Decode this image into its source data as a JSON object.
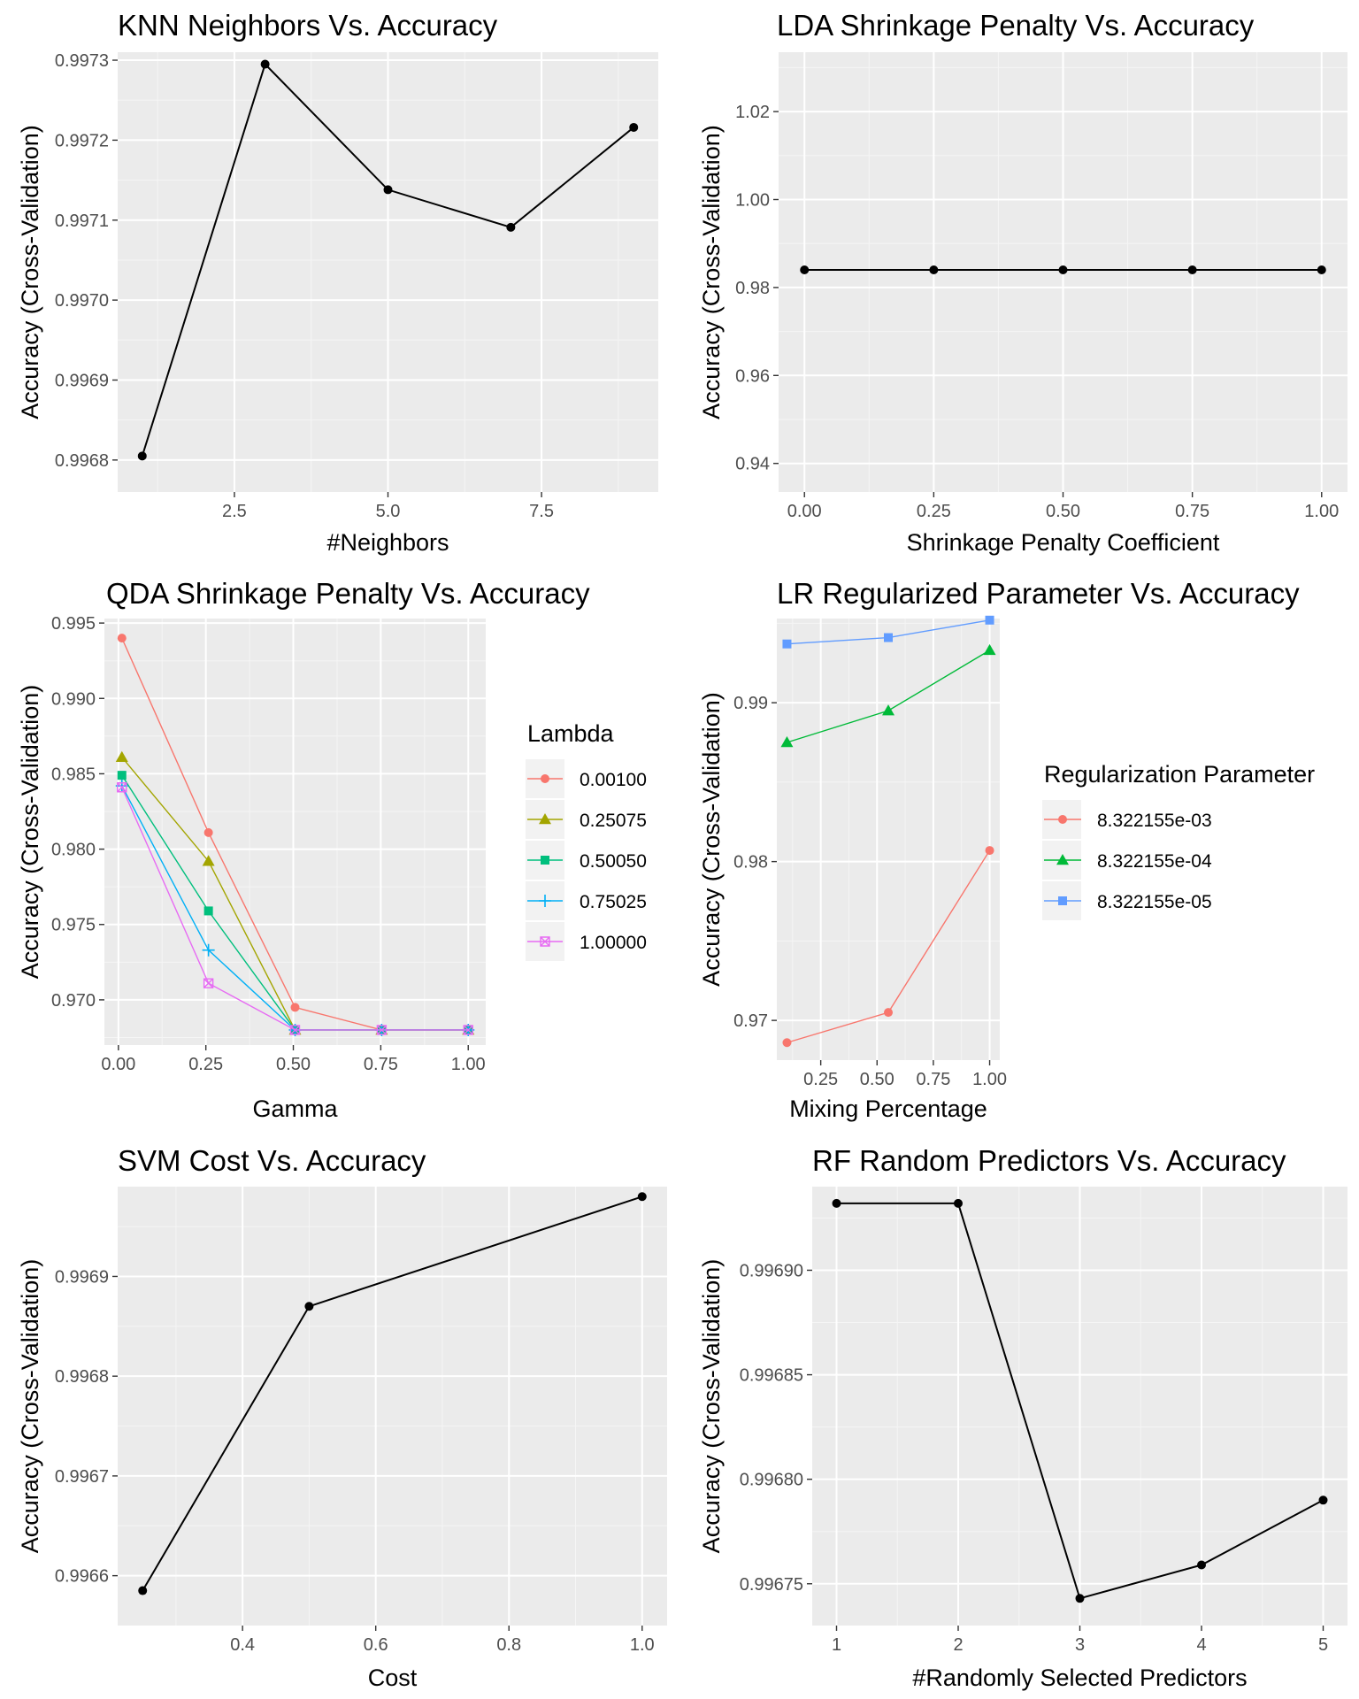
{
  "chart_data": [
    {
      "type": "line",
      "title": "KNN Neighbors Vs. Accuracy",
      "xlabel": "#Neighbors",
      "ylabel": "Accuracy (Cross-Validation)",
      "xlim": [
        0.6,
        9.4
      ],
      "ylim": [
        0.99676,
        0.99731
      ],
      "xticks": [
        2.5,
        5.0,
        7.5
      ],
      "xtick_labels": [
        "2.5",
        "5.0",
        "7.5"
      ],
      "yticks": [
        0.9968,
        0.9969,
        0.997,
        0.9971,
        0.9972,
        0.9973
      ],
      "ytick_labels": [
        "0.9968",
        "0.9969",
        "0.9970",
        "0.9971",
        "0.9972",
        "0.9973"
      ],
      "grid": true,
      "series": [
        {
          "color": "#000000",
          "marker": "circle",
          "x": [
            1,
            3,
            5,
            7,
            9
          ],
          "y": [
            0.996805,
            0.997295,
            0.997138,
            0.997091,
            0.997216
          ]
        }
      ]
    },
    {
      "type": "line",
      "title": "LDA Shrinkage Penalty Vs. Accuracy",
      "xlabel": "Shrinkage Penalty Coefficient",
      "ylabel": "Accuracy (Cross-Validation)",
      "xlim": [
        -0.05,
        1.05
      ],
      "ylim": [
        0.9335,
        1.0335
      ],
      "xticks": [
        0,
        0.25,
        0.5,
        0.75,
        1
      ],
      "xtick_labels": [
        "0.00",
        "0.25",
        "0.50",
        "0.75",
        "1.00"
      ],
      "yticks": [
        0.94,
        0.96,
        0.98,
        1.0,
        1.02
      ],
      "ytick_labels": [
        "0.94",
        "0.96",
        "0.98",
        "1.00",
        "1.02"
      ],
      "grid": true,
      "series": [
        {
          "color": "#000000",
          "marker": "circle",
          "x": [
            0,
            0.25,
            0.5,
            0.75,
            1
          ],
          "y": [
            0.984,
            0.984,
            0.984,
            0.984,
            0.984
          ]
        }
      ]
    },
    {
      "type": "line",
      "title": "QDA Shrinkage Penalty Vs. Accuracy",
      "xlabel": "Gamma",
      "ylabel": "Accuracy (Cross-Validation)",
      "xlim": [
        -0.04,
        1.05
      ],
      "ylim": [
        0.967,
        0.9953
      ],
      "xticks": [
        0,
        0.25,
        0.5,
        0.75,
        1
      ],
      "xtick_labels": [
        "0.00",
        "0.25",
        "0.50",
        "0.75",
        "1.00"
      ],
      "yticks": [
        0.97,
        0.975,
        0.98,
        0.985,
        0.99,
        0.995
      ],
      "ytick_labels": [
        "0.970",
        "0.975",
        "0.980",
        "0.985",
        "0.990",
        "0.995"
      ],
      "grid": true,
      "legend": {
        "title": "Lambda",
        "placement": "right"
      },
      "series": [
        {
          "name": "0.00100",
          "color": "#F8766D",
          "marker": "circle",
          "x": [
            0.01,
            0.2575,
            0.505,
            0.7525,
            1
          ],
          "y": [
            0.994,
            0.9811,
            0.9695,
            0.968,
            0.968
          ]
        },
        {
          "name": "0.25075",
          "color": "#A3A500",
          "marker": "triangle",
          "x": [
            0.01,
            0.2575,
            0.505,
            0.7525,
            1
          ],
          "y": [
            0.9861,
            0.9792,
            0.968,
            0.968,
            0.968
          ]
        },
        {
          "name": "0.50050",
          "color": "#00BF7D",
          "marker": "square",
          "x": [
            0.01,
            0.2575,
            0.505,
            0.7525,
            1
          ],
          "y": [
            0.9849,
            0.9759,
            0.968,
            0.968,
            0.968
          ]
        },
        {
          "name": "0.75025",
          "color": "#00B0F6",
          "marker": "plus",
          "x": [
            0.01,
            0.2575,
            0.505,
            0.7525,
            1
          ],
          "y": [
            0.9842,
            0.9733,
            0.968,
            0.968,
            0.968
          ]
        },
        {
          "name": "1.00000",
          "color": "#E76BF3",
          "marker": "boxcross",
          "x": [
            0.01,
            0.2575,
            0.505,
            0.7525,
            1
          ],
          "y": [
            0.9841,
            0.9711,
            0.968,
            0.968,
            0.968
          ]
        }
      ]
    },
    {
      "type": "line",
      "title": "LR Regularized Parameter Vs. Accuracy",
      "xlabel": "Mixing Percentage",
      "ylabel": "Accuracy (Cross-Validation)",
      "xlim": [
        0.055,
        1.045
      ],
      "ylim": [
        0.9675,
        0.9953
      ],
      "xticks": [
        0.25,
        0.5,
        0.75,
        1
      ],
      "xtick_labels": [
        "0.25",
        "0.50",
        "0.75",
        "1.00"
      ],
      "yticks": [
        0.97,
        0.98,
        0.99
      ],
      "ytick_labels": [
        "0.97",
        "0.98",
        "0.99"
      ],
      "grid": true,
      "legend": {
        "title": "Regularization Parameter",
        "placement": "right"
      },
      "series": [
        {
          "name": "8.322155e-03",
          "color": "#F8766D",
          "marker": "circle",
          "x": [
            0.1,
            0.55,
            1
          ],
          "y": [
            0.9686,
            0.9705,
            0.9807
          ]
        },
        {
          "name": "8.322155e-04",
          "color": "#00BA38",
          "marker": "triangle",
          "x": [
            0.1,
            0.55,
            1
          ],
          "y": [
            0.9875,
            0.9895,
            0.9933
          ]
        },
        {
          "name": "8.322155e-05",
          "color": "#619CFF",
          "marker": "square",
          "x": [
            0.1,
            0.55,
            1
          ],
          "y": [
            0.9937,
            0.9941,
            0.9952
          ]
        }
      ]
    },
    {
      "type": "line",
      "title": "SVM Cost Vs. Accuracy",
      "xlabel": "Cost",
      "ylabel": "Accuracy (Cross-Validation)",
      "xlim": [
        0.2125,
        1.0375
      ],
      "ylim": [
        0.99655,
        0.99699
      ],
      "xticks": [
        0.4,
        0.6,
        0.8,
        1.0
      ],
      "xtick_labels": [
        "0.4",
        "0.6",
        "0.8",
        "1.0"
      ],
      "yticks": [
        0.9966,
        0.9967,
        0.9968,
        0.9969
      ],
      "ytick_labels": [
        "0.9966",
        "0.9967",
        "0.9968",
        "0.9969"
      ],
      "grid": true,
      "series": [
        {
          "color": "#000000",
          "marker": "circle",
          "x": [
            0.25,
            0.5,
            1
          ],
          "y": [
            0.996585,
            0.99687,
            0.99698
          ]
        }
      ]
    },
    {
      "type": "line",
      "title": "RF Random Predictors Vs. Accuracy",
      "xlabel": "#Randomly Selected Predictors",
      "ylabel": "Accuracy (Cross-Validation)",
      "xlim": [
        0.8,
        5.2
      ],
      "ylim": [
        0.99673,
        0.99694
      ],
      "xticks": [
        1,
        2,
        3,
        4,
        5
      ],
      "xtick_labels": [
        "1",
        "2",
        "3",
        "4",
        "5"
      ],
      "yticks": [
        0.99675,
        0.9968,
        0.99685,
        0.9969
      ],
      "ytick_labels": [
        "0.99675",
        "0.99680",
        "0.99685",
        "0.99690"
      ],
      "grid": true,
      "series": [
        {
          "color": "#000000",
          "marker": "circle",
          "x": [
            1,
            2,
            3,
            4,
            5
          ],
          "y": [
            0.996932,
            0.996932,
            0.996743,
            0.996759,
            0.99679
          ]
        }
      ]
    }
  ]
}
